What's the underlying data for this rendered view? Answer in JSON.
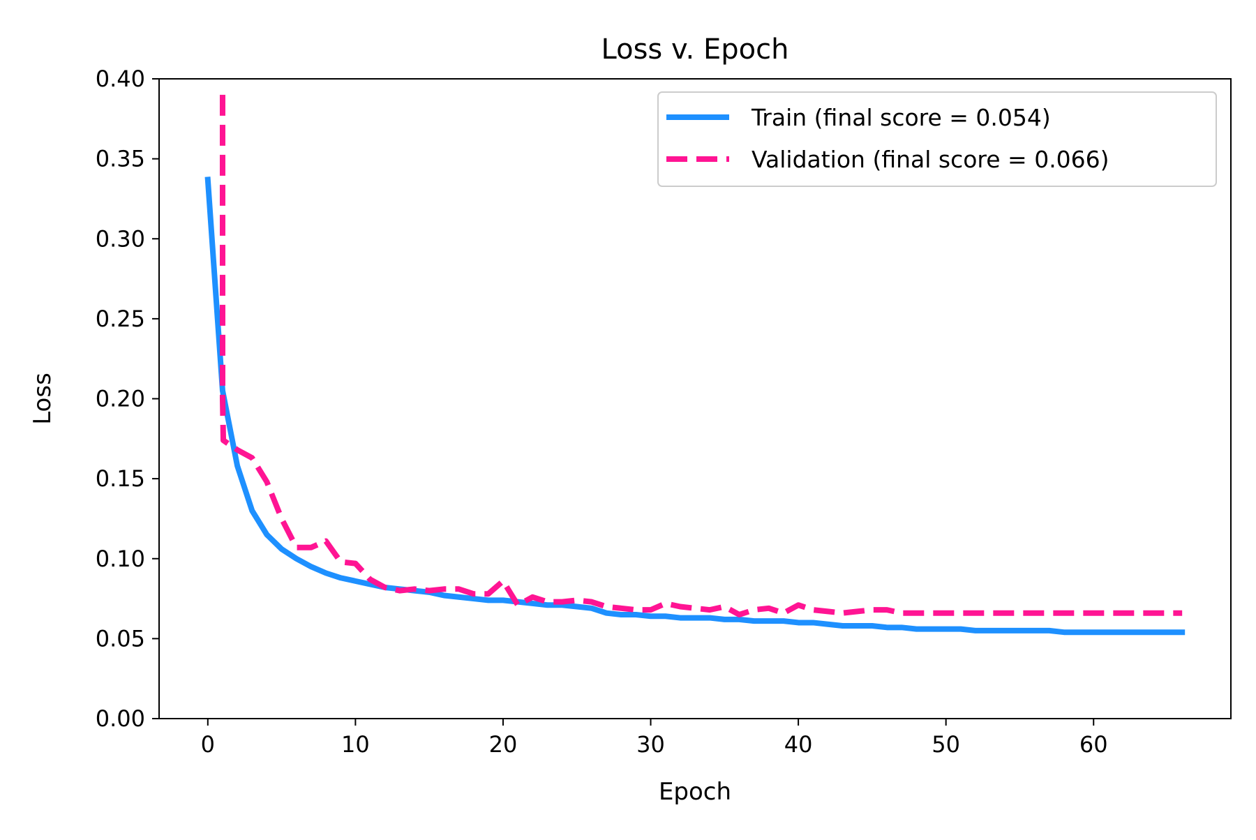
{
  "chart_data": {
    "type": "line",
    "title": "Loss v. Epoch",
    "xlabel": "Epoch",
    "ylabel": "Loss",
    "xlim": [
      -3.3,
      69.3
    ],
    "ylim": [
      0.0,
      0.4
    ],
    "xticks": [
      0,
      10,
      20,
      30,
      40,
      50,
      60
    ],
    "xtick_labels": [
      "0",
      "10",
      "20",
      "30",
      "40",
      "50",
      "60"
    ],
    "yticks": [
      0.0,
      0.05,
      0.1,
      0.15,
      0.2,
      0.25,
      0.3,
      0.35,
      0.4
    ],
    "ytick_labels": [
      "0.00",
      "0.05",
      "0.10",
      "0.15",
      "0.20",
      "0.25",
      "0.30",
      "0.35",
      "0.40"
    ],
    "grid": false,
    "legend_position": "top-right",
    "series": [
      {
        "name": "Train (final score = 0.054)",
        "color": "#1e90ff",
        "style": "solid",
        "x": [
          0,
          1,
          2,
          3,
          4,
          5,
          6,
          7,
          8,
          9,
          10,
          11,
          12,
          13,
          14,
          15,
          16,
          17,
          18,
          19,
          20,
          21,
          22,
          23,
          24,
          25,
          26,
          27,
          28,
          29,
          30,
          31,
          32,
          33,
          34,
          35,
          36,
          37,
          38,
          39,
          40,
          41,
          42,
          43,
          44,
          45,
          46,
          47,
          48,
          49,
          50,
          51,
          52,
          53,
          54,
          55,
          56,
          57,
          58,
          59,
          60,
          61,
          62,
          63,
          64,
          65,
          66
        ],
        "y": [
          0.337,
          0.205,
          0.158,
          0.13,
          0.115,
          0.106,
          0.1,
          0.095,
          0.091,
          0.088,
          0.086,
          0.084,
          0.082,
          0.081,
          0.08,
          0.079,
          0.077,
          0.076,
          0.075,
          0.074,
          0.074,
          0.073,
          0.072,
          0.071,
          0.071,
          0.07,
          0.069,
          0.066,
          0.065,
          0.065,
          0.064,
          0.064,
          0.063,
          0.063,
          0.063,
          0.062,
          0.062,
          0.061,
          0.061,
          0.061,
          0.06,
          0.06,
          0.059,
          0.058,
          0.058,
          0.058,
          0.057,
          0.057,
          0.056,
          0.056,
          0.056,
          0.056,
          0.055,
          0.055,
          0.055,
          0.055,
          0.055,
          0.055,
          0.054,
          0.054,
          0.054,
          0.054,
          0.054,
          0.054,
          0.054,
          0.054,
          0.054
        ]
      },
      {
        "name": "Validation (final score = 0.066)",
        "color": "#ff1493",
        "style": "dashed",
        "x": [
          1,
          1,
          1.05,
          2,
          3,
          4,
          5,
          6,
          7,
          8,
          9,
          10,
          11,
          12,
          13,
          14,
          15,
          16,
          17,
          18,
          19,
          20,
          21,
          22,
          23,
          24,
          25,
          26,
          27,
          28,
          29,
          30,
          31,
          32,
          33,
          34,
          35,
          36,
          37,
          38,
          39,
          40,
          41,
          42,
          43,
          44,
          45,
          46,
          47,
          48,
          49,
          50,
          51,
          52,
          53,
          54,
          55,
          56,
          57,
          58,
          59,
          60,
          61,
          62,
          63,
          64,
          65,
          66
        ],
        "y": [
          0.39,
          0.2,
          0.174,
          0.168,
          0.163,
          0.148,
          0.125,
          0.107,
          0.107,
          0.111,
          0.098,
          0.097,
          0.087,
          0.082,
          0.08,
          0.081,
          0.08,
          0.081,
          0.081,
          0.078,
          0.078,
          0.086,
          0.071,
          0.076,
          0.073,
          0.073,
          0.074,
          0.073,
          0.07,
          0.069,
          0.068,
          0.068,
          0.072,
          0.07,
          0.069,
          0.068,
          0.07,
          0.065,
          0.068,
          0.069,
          0.066,
          0.071,
          0.068,
          0.067,
          0.066,
          0.067,
          0.068,
          0.068,
          0.066,
          0.066,
          0.066,
          0.066,
          0.066,
          0.066,
          0.066,
          0.066,
          0.066,
          0.066,
          0.066,
          0.066,
          0.066,
          0.066,
          0.066,
          0.066,
          0.066,
          0.066,
          0.066,
          0.066
        ]
      }
    ]
  }
}
